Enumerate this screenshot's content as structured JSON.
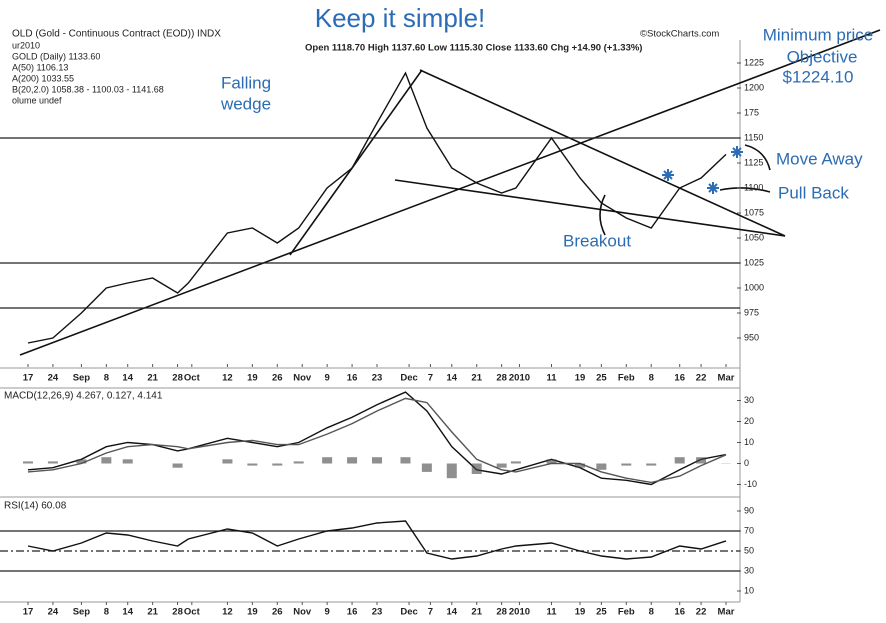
{
  "header": {
    "headline": "Keep it simple!"
  },
  "annotations": {
    "objective": [
      "Minimum price",
      "Objective",
      "$1224.10"
    ],
    "pattern": [
      "Falling",
      "wedge"
    ],
    "move_away": "Move Away",
    "pull_back": "Pull Back",
    "breakout": "Breakout"
  },
  "chart_data": [
    {
      "type": "line",
      "title": "OLD (Gold - Continuous Contract (EOD)) INDX",
      "source": "©StockCharts.com",
      "info": "Open 1118.70  High 1137.60  Low 1115.30  Close 1133.60  Chg +14.90 (+1.33%)",
      "legend_lines": [
        "ur2010",
        "GOLD (Daily) 1133.60",
        "A(50) 1106.13",
        "A(200) 1033.55",
        "B(20,2.0) 1058.38 - 1100.03 - 1141.68",
        "olume undef"
      ],
      "x": [
        0,
        7,
        15,
        22,
        28,
        35,
        42,
        45,
        56,
        63,
        70,
        76,
        84,
        91,
        98,
        106,
        112,
        119,
        126,
        133,
        137,
        147,
        155,
        161,
        168,
        175,
        183,
        189,
        196
      ],
      "series": [
        {
          "name": "GOLD (Daily)",
          "color": "#111111",
          "values": [
            945,
            950,
            975,
            1000,
            1005,
            1010,
            995,
            1005,
            1055,
            1060,
            1045,
            1060,
            1100,
            1120,
            1165,
            1215,
            1160,
            1120,
            1105,
            1095,
            1100,
            1150,
            1110,
            1085,
            1070,
            1060,
            1100,
            1110,
            1133.6
          ]
        }
      ],
      "hlines": [
        1150,
        1025,
        980
      ],
      "ylim": [
        925,
        1240
      ],
      "yticks": [
        950,
        975,
        1000,
        1025,
        1050,
        1075,
        1100,
        1125,
        1150,
        {
          "value": 1175,
          "label": "175"
        },
        1200,
        1225
      ],
      "xlim": [
        0,
        196
      ],
      "xticks": [
        {
          "value": 0,
          "label": "17"
        },
        {
          "value": 7,
          "label": "24"
        },
        {
          "value": 15,
          "label": "Sep"
        },
        {
          "value": 22,
          "label": "8"
        },
        {
          "value": 28,
          "label": "14"
        },
        {
          "value": 35,
          "label": "21"
        },
        {
          "value": 42,
          "label": "28"
        },
        {
          "value": 46,
          "label": "Oct"
        },
        {
          "value": 56,
          "label": "12"
        },
        {
          "value": 63,
          "label": "19"
        },
        {
          "value": 70,
          "label": "26"
        },
        {
          "value": 77,
          "label": "Nov"
        },
        {
          "value": 84,
          "label": "9"
        },
        {
          "value": 91,
          "label": "16"
        },
        {
          "value": 98,
          "label": "23"
        },
        {
          "value": 107,
          "label": "Dec"
        },
        {
          "value": 113,
          "label": "7"
        },
        {
          "value": 119,
          "label": "14"
        },
        {
          "value": 126,
          "label": "21"
        },
        {
          "value": 133,
          "label": "28"
        },
        {
          "value": 138,
          "label": "2010"
        },
        {
          "value": 147,
          "label": "11"
        },
        {
          "value": 155,
          "label": "19"
        },
        {
          "value": 161,
          "label": "25"
        },
        {
          "value": 168,
          "label": "Feb"
        },
        {
          "value": 175,
          "label": "8"
        },
        {
          "value": 183,
          "label": "16"
        },
        {
          "value": 189,
          "label": "22"
        },
        {
          "value": 196,
          "label": "Mar"
        }
      ]
    },
    {
      "type": "line",
      "title": "MACD(12,26,9) 4.267, 0.127, 4.141",
      "x": [
        0,
        7,
        15,
        22,
        28,
        35,
        42,
        45,
        56,
        63,
        70,
        76,
        84,
        91,
        98,
        106,
        112,
        119,
        126,
        133,
        137,
        147,
        155,
        161,
        168,
        175,
        183,
        189,
        196
      ],
      "series": [
        {
          "name": "MACD",
          "color": "#111111",
          "values": [
            -3,
            -2,
            2,
            8,
            10,
            9,
            6,
            7,
            12,
            10,
            8,
            10,
            17,
            22,
            28,
            34,
            25,
            8,
            -3,
            -5,
            -3,
            2,
            -2,
            -7,
            -8,
            -10,
            -3,
            2,
            4.267
          ]
        },
        {
          "name": "Signal",
          "color": "#555555",
          "values": [
            -4,
            -3,
            0,
            5,
            8,
            9,
            8,
            7,
            10,
            11,
            9,
            9,
            14,
            19,
            25,
            31,
            29,
            15,
            2,
            -3,
            -4,
            0,
            0,
            -4,
            -7,
            -9,
            -6,
            -1,
            4.141
          ]
        },
        {
          "name": "Histogram",
          "kind": "bar",
          "color": "#444444",
          "values": [
            1,
            1,
            2,
            3,
            2,
            0,
            -2,
            0,
            2,
            -1,
            -1,
            1,
            3,
            3,
            3,
            3,
            -4,
            -7,
            -5,
            -2,
            1,
            2,
            -2,
            -3,
            -1,
            -1,
            3,
            3,
            0.127
          ]
        }
      ],
      "ylim": [
        -15,
        35
      ],
      "yticks": [
        30,
        20,
        10,
        0,
        -10
      ],
      "xlim": [
        0,
        196
      ]
    },
    {
      "type": "line",
      "title": "RSI(14) 60.08",
      "x": [
        0,
        7,
        15,
        22,
        28,
        35,
        42,
        45,
        56,
        63,
        70,
        76,
        84,
        91,
        98,
        106,
        112,
        119,
        126,
        133,
        137,
        147,
        155,
        161,
        168,
        175,
        183,
        189,
        196
      ],
      "series": [
        {
          "name": "RSI(14)",
          "color": "#111111",
          "values": [
            55,
            50,
            58,
            68,
            66,
            60,
            55,
            62,
            72,
            68,
            55,
            62,
            70,
            73,
            78,
            80,
            48,
            42,
            45,
            52,
            55,
            58,
            50,
            45,
            42,
            44,
            55,
            52,
            60.08
          ]
        }
      ],
      "hlines": [
        70,
        50,
        30
      ],
      "ylim": [
        0,
        100
      ],
      "yticks": [
        90,
        70,
        50,
        30,
        10
      ],
      "xlim": [
        0,
        196
      ],
      "xticks": [
        {
          "value": 0,
          "label": "17"
        },
        {
          "value": 7,
          "label": "24"
        },
        {
          "value": 15,
          "label": "Sep"
        },
        {
          "value": 22,
          "label": "8"
        },
        {
          "value": 28,
          "label": "14"
        },
        {
          "value": 35,
          "label": "21"
        },
        {
          "value": 42,
          "label": "28"
        },
        {
          "value": 46,
          "label": "Oct"
        },
        {
          "value": 56,
          "label": "12"
        },
        {
          "value": 63,
          "label": "19"
        },
        {
          "value": 70,
          "label": "26"
        },
        {
          "value": 77,
          "label": "Nov"
        },
        {
          "value": 84,
          "label": "9"
        },
        {
          "value": 91,
          "label": "16"
        },
        {
          "value": 98,
          "label": "23"
        },
        {
          "value": 107,
          "label": "Dec"
        },
        {
          "value": 113,
          "label": "7"
        },
        {
          "value": 119,
          "label": "14"
        },
        {
          "value": 126,
          "label": "21"
        },
        {
          "value": 133,
          "label": "28"
        },
        {
          "value": 138,
          "label": "2010"
        },
        {
          "value": 147,
          "label": "11"
        },
        {
          "value": 155,
          "label": "19"
        },
        {
          "value": 161,
          "label": "25"
        },
        {
          "value": 168,
          "label": "Feb"
        },
        {
          "value": 175,
          "label": "8"
        },
        {
          "value": 183,
          "label": "16"
        },
        {
          "value": 189,
          "label": "22"
        },
        {
          "value": 196,
          "label": "Mar"
        }
      ]
    }
  ]
}
